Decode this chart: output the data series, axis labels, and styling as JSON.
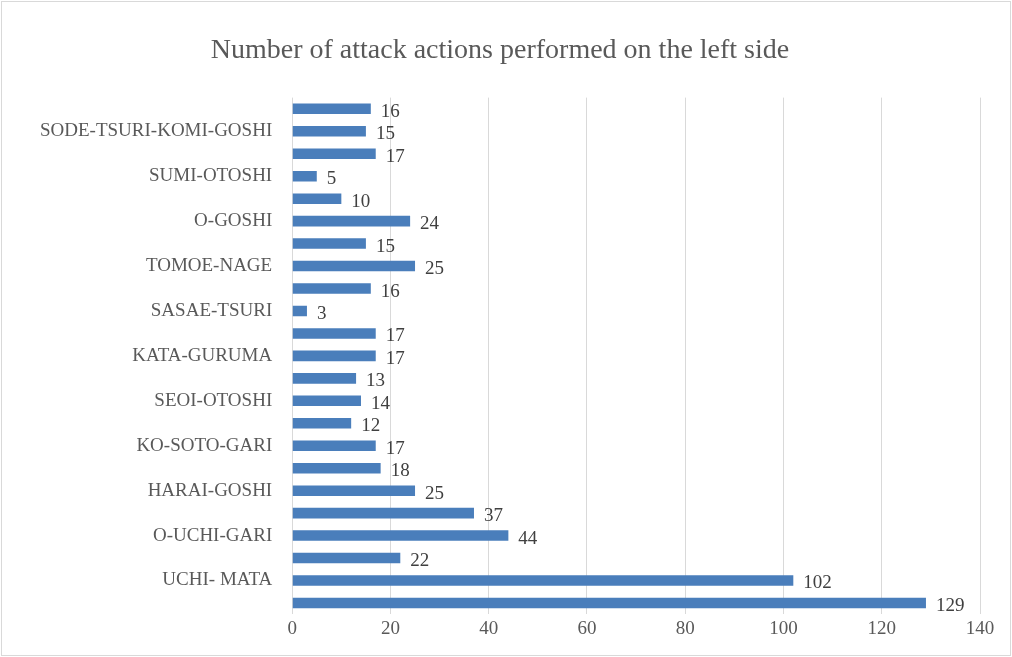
{
  "chart_data": {
    "type": "bar",
    "orientation": "horizontal",
    "title": "Number of attack actions performed on the left side",
    "categories": [
      null,
      "SODE-TSURI-KOMI-GOSHI",
      null,
      "SUMI-OTOSHI",
      null,
      "O-GOSHI",
      null,
      "TOMOE-NAGE",
      null,
      "SASAE-TSURI",
      null,
      "KATA-GURUMA",
      null,
      "SEOI-OTOSHI",
      null,
      "KO-SOTO-GARI",
      null,
      "HARAI-GOSHI",
      null,
      "O-UCHI-GARI",
      null,
      "UCHI- MATA",
      null
    ],
    "values": [
      16,
      15,
      17,
      5,
      10,
      24,
      15,
      25,
      16,
      3,
      17,
      17,
      13,
      14,
      12,
      17,
      18,
      25,
      37,
      44,
      22,
      102,
      129
    ],
    "color": "#4a7ebb",
    "xlim": [
      0,
      140
    ],
    "xticks": [
      0,
      20,
      40,
      60,
      80,
      100,
      120,
      140
    ],
    "grid": "x",
    "data_labels": true,
    "legend": false
  }
}
